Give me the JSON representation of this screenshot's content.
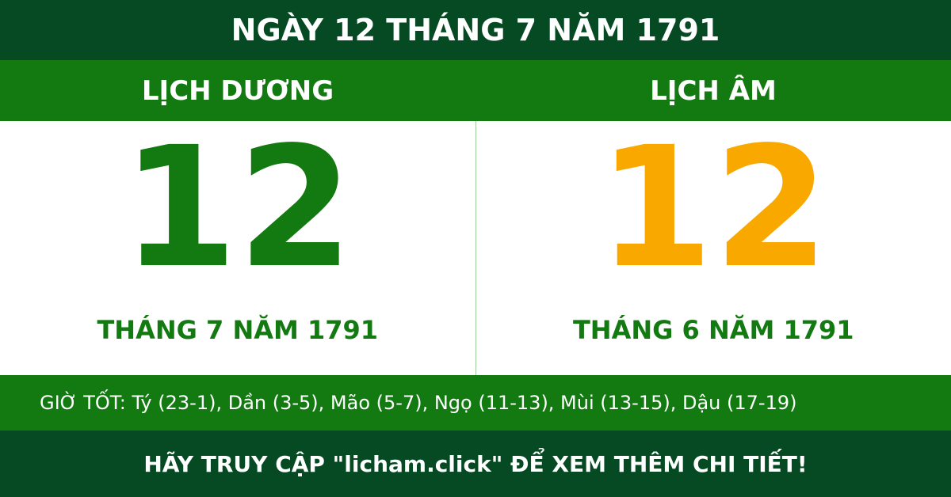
{
  "header": {
    "title": "NGÀY 12 THÁNG 7 NĂM 1791"
  },
  "solar": {
    "label": "LỊCH DƯƠNG",
    "day": "12",
    "month_year": "THÁNG 7 NĂM 1791"
  },
  "lunar": {
    "label": "LỊCH ÂM",
    "day": "12",
    "month_year": "THÁNG 6 NĂM 1791"
  },
  "good_hours": "GIỜ TỐT: Tý (23-1), Dần (3-5), Mão (5-7), Ngọ (11-13), Mùi (13-15), Dậu (17-19)",
  "footer": "HÃY TRUY CẬP \"licham.click\" ĐỂ XEM THÊM CHI TIẾT!"
}
